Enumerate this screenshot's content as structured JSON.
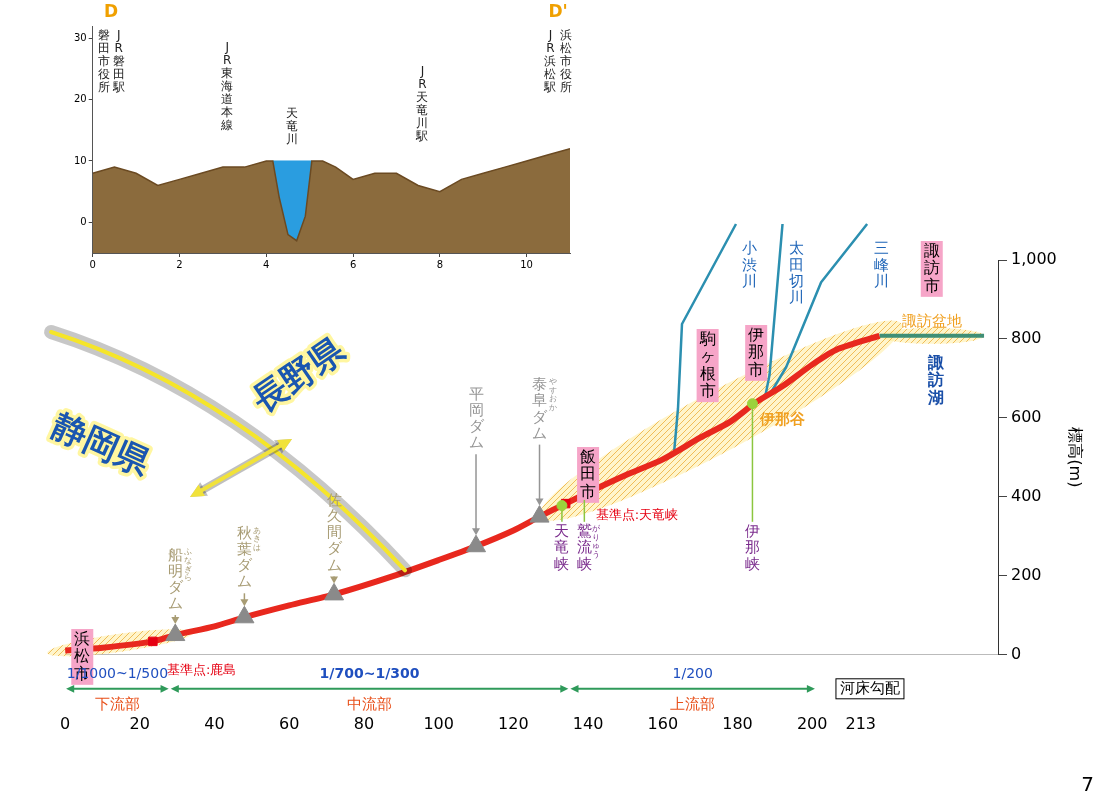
{
  "chart_data": [
    {
      "type": "line",
      "x": [
        0,
        10,
        23.5,
        29.5,
        40,
        48,
        60,
        72,
        88,
        100,
        110,
        120,
        127,
        134,
        142,
        150,
        160,
        170,
        178,
        185,
        192,
        200,
        207,
        218
      ],
      "values": [
        11,
        18,
        34,
        50,
        72,
        95,
        125,
        153,
        200,
        240,
        275,
        315,
        350,
        383,
        420,
        455,
        495,
        550,
        590,
        640,
        680,
        735,
        775,
        808
      ],
      "color": "#e8281e",
      "xlim": [
        0,
        250
      ],
      "xticks": [
        0,
        20,
        40,
        60,
        80,
        100,
        120,
        140,
        160,
        180,
        200,
        213
      ],
      "ylim": [
        0,
        1000
      ],
      "yticks": [
        0,
        200,
        400,
        600,
        800,
        {
          "value": 1000,
          "label": "1,000"
        }
      ],
      "ylabel": "標高(m)",
      "grid": false,
      "annotations": {
        "dams": [
          {
            "label": "船明ダム",
            "ruby": "ふなぎら",
            "x": 29.5,
            "y": 50
          },
          {
            "label": "秋葉ダム",
            "ruby": "あきは",
            "x": 48,
            "y": 95
          },
          {
            "label": "佐久間ダム",
            "x": 72,
            "y": 153
          },
          {
            "label": "平岡ダム",
            "x": 110,
            "y": 275
          },
          {
            "label": "泰阜ダム",
            "ruby": "やすおか",
            "x": 127,
            "y": 350
          }
        ],
        "cities": [
          {
            "label": "浜松市",
            "x": 4.6
          },
          {
            "label": "飯田市",
            "x": 140
          },
          {
            "label": "駒ヶ根市",
            "x": 172
          },
          {
            "label": "伊那市",
            "x": 185
          },
          {
            "label": "諏訪市",
            "x": 232
          }
        ],
        "reference_points": [
          {
            "label": "基準点:鹿島",
            "x": 23.5,
            "y": 34
          },
          {
            "label": "基準点:天竜峡",
            "x": 134,
            "y": 383
          }
        ],
        "gorges": [
          {
            "label": "天竜峡",
            "x": 133,
            "y": 378
          },
          {
            "label": "鷲流峡",
            "ruby": "がりゅう",
            "x": 139,
            "y": 405
          },
          {
            "label": "伊那峡",
            "x": 184,
            "y": 636
          }
        ],
        "valley": {
          "label": "伊那谷",
          "x": 184,
          "y": 636
        },
        "tributaries": [
          {
            "label": "小渋川",
            "x": 163,
            "y": 510
          },
          {
            "label": "太田切川",
            "x": 187.5,
            "y": 658
          },
          {
            "label": "三峰川",
            "x": 189,
            "y": 665
          }
        ],
        "prefectures": [
          "静岡県",
          "長野県"
        ],
        "basin": {
          "label": "諏訪盆地",
          "x": [
            218,
            246
          ],
          "y": 808
        },
        "lake": {
          "label": "諏訪湖"
        },
        "gradient": {
          "label": "河床勾配",
          "segments": [
            {
              "range": [
                0,
                28
              ],
              "slope": "1/1000~1/500",
              "label": "下流部"
            },
            {
              "range": [
                28,
                135
              ],
              "slope": "1/700~1/300",
              "label": "中流部"
            },
            {
              "range": [
                135,
                201
              ],
              "slope": "1/200",
              "label": "上流部"
            }
          ]
        },
        "page_number": "7"
      }
    },
    {
      "type": "area",
      "x": [
        0,
        0.5,
        1,
        1.5,
        2,
        2.5,
        3,
        3.5,
        4,
        4.15,
        4.3,
        4.5,
        4.7,
        4.9,
        5.05,
        5.3,
        5.6,
        6,
        6.5,
        7,
        7.5,
        8,
        8.5,
        9,
        9.5,
        10,
        10.5,
        11
      ],
      "values": [
        8,
        9,
        8,
        6,
        7,
        8,
        9,
        9,
        10,
        10,
        4,
        -2,
        -3,
        1,
        10,
        10,
        9,
        7,
        8,
        8,
        6,
        5,
        7,
        8,
        9,
        10,
        11,
        12
      ],
      "color": "#8b6b3d",
      "xlim": [
        0,
        11
      ],
      "xticks": [
        0,
        2,
        4,
        6,
        8,
        10
      ],
      "ylim": [
        -5,
        32
      ],
      "yticks": [
        0,
        10,
        20,
        30
      ],
      "grid": false,
      "annotations": {
        "ends": [
          "D",
          "D'"
        ],
        "water": {
          "x": [
            4.15,
            5.05
          ],
          "values": [
            10,
            10
          ]
        },
        "landmarks": [
          {
            "label": "磐田市役所",
            "x": 0.25
          },
          {
            "label": "JR磐田駅",
            "x": 0.6
          },
          {
            "label": "JR東海道本線",
            "x": 3.1
          },
          {
            "label": "天竜川",
            "x": 4.6
          },
          {
            "label": "JR天竜川駅",
            "x": 7.6
          },
          {
            "label": "JR浜松駅",
            "x": 10.55
          },
          {
            "label": "浜松市役所",
            "x": 10.9
          }
        ]
      }
    }
  ]
}
